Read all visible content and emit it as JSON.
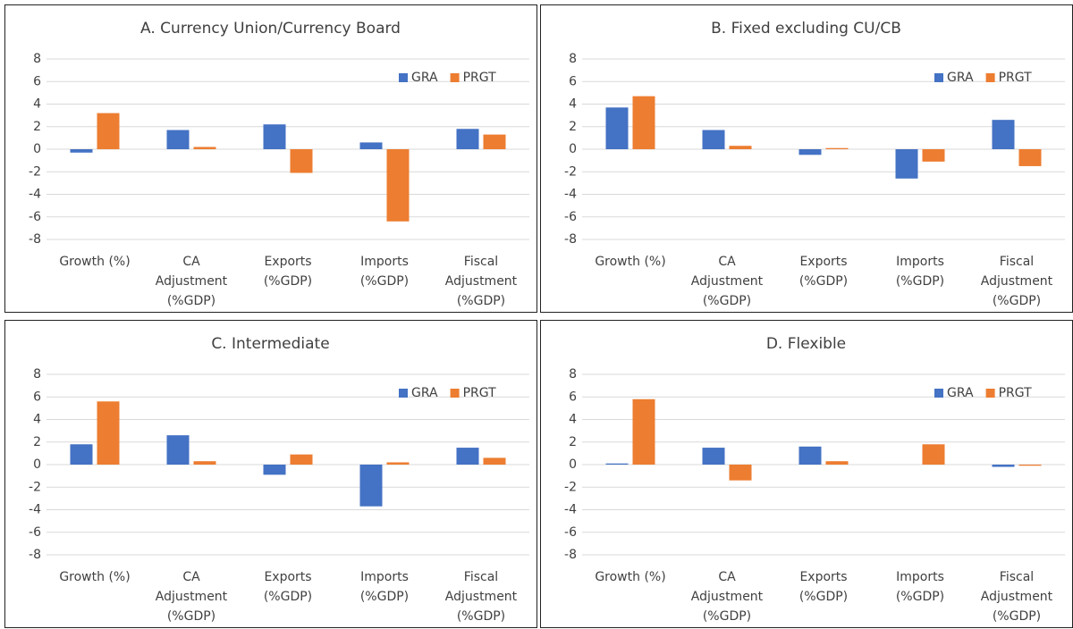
{
  "chart_data": [
    {
      "type": "bar",
      "title": "A. Currency Union/Currency Board",
      "categories": [
        "Growth (%)",
        "CA Adjustment (%GDP)",
        "Exports (%GDP)",
        "Imports (%GDP)",
        "Fiscal Adjustment (%GDP)"
      ],
      "series": [
        {
          "name": "GRA",
          "color": "#4472c4",
          "values": [
            -0.3,
            1.7,
            2.2,
            0.6,
            1.8
          ]
        },
        {
          "name": "PRGT",
          "color": "#ed7d31",
          "values": [
            3.2,
            0.2,
            -2.1,
            -6.4,
            1.3
          ]
        }
      ],
      "ylim": [
        -8,
        8
      ],
      "yticks": [
        -8,
        -6,
        -4,
        -2,
        0,
        2,
        4,
        6,
        8
      ],
      "grid": true,
      "legend": "upper right"
    },
    {
      "type": "bar",
      "title": "B. Fixed excluding CU/CB",
      "categories": [
        "Growth (%)",
        "CA Adjustment (%GDP)",
        "Exports (%GDP)",
        "Imports (%GDP)",
        "Fiscal Adjustment (%GDP)"
      ],
      "series": [
        {
          "name": "GRA",
          "color": "#4472c4",
          "values": [
            3.7,
            1.7,
            -0.5,
            -2.6,
            2.6
          ]
        },
        {
          "name": "PRGT",
          "color": "#ed7d31",
          "values": [
            4.7,
            0.3,
            0.1,
            -1.1,
            -1.5
          ]
        }
      ],
      "ylim": [
        -8,
        8
      ],
      "yticks": [
        -8,
        -6,
        -4,
        -2,
        0,
        2,
        4,
        6,
        8
      ],
      "grid": true,
      "legend": "upper right"
    },
    {
      "type": "bar",
      "title": "C. Intermediate",
      "categories": [
        "Growth (%)",
        "CA Adjustment (%GDP)",
        "Exports (%GDP)",
        "Imports (%GDP)",
        "Fiscal Adjustment (%GDP)"
      ],
      "series": [
        {
          "name": "GRA",
          "color": "#4472c4",
          "values": [
            1.8,
            2.6,
            -0.9,
            -3.7,
            1.5
          ]
        },
        {
          "name": "PRGT",
          "color": "#ed7d31",
          "values": [
            5.6,
            0.3,
            0.9,
            0.2,
            0.6
          ]
        }
      ],
      "ylim": [
        -8,
        8
      ],
      "yticks": [
        -8,
        -6,
        -4,
        -2,
        0,
        2,
        4,
        6,
        8
      ],
      "grid": true,
      "legend": "upper right"
    },
    {
      "type": "bar",
      "title": "D. Flexible",
      "categories": [
        "Growth (%)",
        "CA Adjustment (%GDP)",
        "Exports (%GDP)",
        "Imports (%GDP)",
        "Fiscal Adjustment (%GDP)"
      ],
      "series": [
        {
          "name": "GRA",
          "color": "#4472c4",
          "values": [
            0.1,
            1.5,
            1.6,
            0.0,
            -0.2
          ]
        },
        {
          "name": "PRGT",
          "color": "#ed7d31",
          "values": [
            5.8,
            -1.4,
            0.3,
            1.8,
            -0.1
          ]
        }
      ],
      "ylim": [
        -8,
        8
      ],
      "yticks": [
        -8,
        -6,
        -4,
        -2,
        0,
        2,
        4,
        6,
        8
      ],
      "grid": true,
      "legend": "upper right"
    }
  ]
}
